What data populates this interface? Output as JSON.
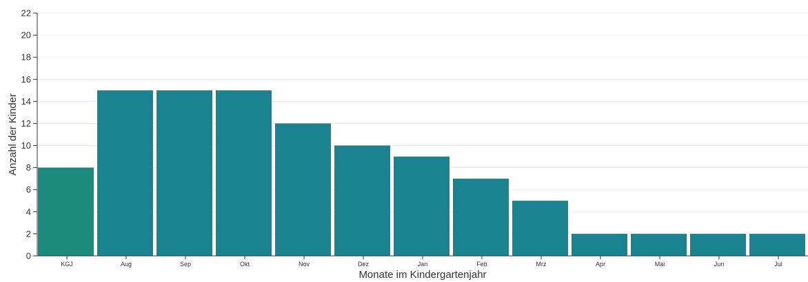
{
  "chart_data": {
    "type": "bar",
    "categories": [
      "KGJ",
      "Aug",
      "Sep",
      "Okt",
      "Nov",
      "Dez",
      "Jan",
      "Feb",
      "Mrz",
      "Apr",
      "Mai",
      "Jun",
      "Jul"
    ],
    "values": [
      8,
      15,
      15,
      15,
      12,
      10,
      9,
      7,
      5,
      2,
      2,
      2,
      2
    ],
    "xlabel": "Monate im Kindergartenjahr",
    "ylabel": "Anzahl der Kinder",
    "ylim": [
      0,
      22
    ],
    "yticks": [
      0,
      2,
      4,
      6,
      8,
      10,
      12,
      14,
      16,
      18,
      20,
      22
    ],
    "grid": true,
    "colors": {
      "first_bar": "#198a7b",
      "bar": "#19838f",
      "grid": "#ececec",
      "axis": "#333333"
    }
  }
}
